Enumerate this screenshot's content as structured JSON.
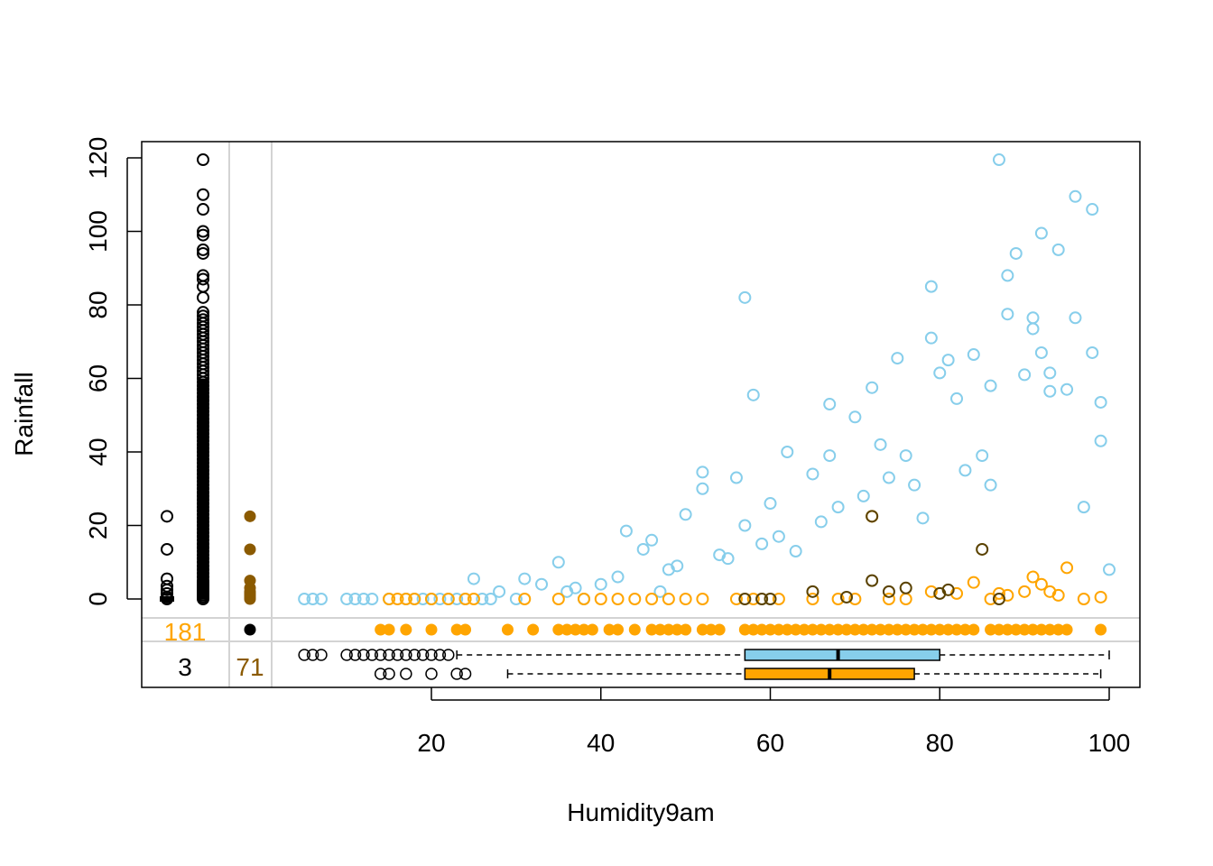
{
  "chart_data": {
    "type": "scatter",
    "title": "",
    "xlabel": "Humidity9am",
    "ylabel": "Rainfall",
    "xlim": [
      4,
      100
    ],
    "ylim": [
      0,
      120
    ],
    "x_ticks": [
      20,
      40,
      60,
      80,
      100
    ],
    "y_ticks": [
      0,
      20,
      40,
      60,
      80,
      100,
      120
    ],
    "grid": false,
    "legend": "none",
    "colors": {
      "complete": "#87CEEB",
      "x_missing": "#FFA500",
      "y_missing": "#8B5A00",
      "both_missing": "#000000",
      "frame": "#000000",
      "panel_lines": "#D3D3D3"
    },
    "missing_counts": {
      "x_missing": "181",
      "y_missing": "71",
      "both_missing": "3"
    },
    "series": [
      {
        "role": "complete",
        "x": [
          5,
          6,
          7,
          10,
          11,
          12,
          13,
          15,
          17,
          18,
          19,
          20,
          21,
          22,
          23,
          24,
          25,
          26,
          27,
          28,
          30,
          31,
          33,
          35,
          36,
          37,
          38,
          40,
          42,
          43,
          45,
          46,
          47,
          48,
          49,
          50,
          52,
          52,
          54,
          55,
          56,
          57,
          57,
          58,
          59,
          60,
          61,
          62,
          63,
          65,
          66,
          67,
          67,
          68,
          70,
          71,
          72,
          73,
          74,
          75,
          76,
          77,
          78,
          79,
          79,
          80,
          81,
          82,
          83,
          84,
          85,
          86,
          86,
          87,
          88,
          88,
          89,
          90,
          91,
          91,
          92,
          92,
          93,
          93,
          94,
          95,
          96,
          96,
          97,
          98,
          98,
          99,
          99,
          100
        ],
        "y": [
          0,
          0,
          0,
          0,
          0,
          0,
          0,
          0,
          0,
          0,
          0,
          0,
          0,
          0,
          0,
          0,
          5.5,
          0,
          0,
          2,
          0,
          5.5,
          4,
          10,
          2,
          3,
          0,
          4,
          6,
          18.5,
          13.5,
          16,
          2,
          8,
          9,
          23,
          34.5,
          30,
          12,
          11,
          33,
          82,
          20,
          55.5,
          15,
          26,
          17,
          40,
          13,
          34,
          21,
          53,
          39,
          25,
          49.5,
          28,
          57.5,
          42,
          33,
          65.5,
          39,
          31,
          22,
          85,
          71,
          61.5,
          65,
          54.5,
          35,
          66.5,
          39,
          58,
          31,
          119.5,
          88,
          77.5,
          94,
          61,
          73.5,
          76.5,
          99.5,
          67,
          61.5,
          56.5,
          95,
          57,
          109.5,
          76.5,
          25,
          106,
          67,
          43,
          53.5,
          8
        ]
      },
      {
        "role": "x_missing",
        "x": [
          15,
          16,
          17,
          18,
          20,
          22,
          24,
          25,
          31,
          35,
          38,
          40,
          42,
          44,
          46,
          48,
          50,
          52,
          56,
          58,
          61,
          65,
          68,
          70,
          72,
          74,
          76,
          79,
          82,
          84,
          86,
          87,
          88,
          90,
          91,
          92,
          93,
          94,
          95,
          97,
          99
        ],
        "y": [
          0,
          0,
          0,
          0,
          0,
          0,
          0,
          0,
          0,
          0,
          0,
          0,
          0,
          0,
          0,
          0,
          0,
          0,
          0,
          0,
          0,
          0,
          0,
          0,
          22.5,
          0,
          0,
          2,
          1.5,
          4.5,
          0,
          1.5,
          1,
          2,
          6,
          4,
          2,
          1,
          8.5,
          0,
          0.5
        ]
      },
      {
        "role": "y_missing",
        "x": [
          14,
          15,
          17,
          20,
          23,
          24,
          29,
          32,
          35,
          36,
          37,
          38,
          39,
          41,
          42,
          44,
          46,
          47,
          48,
          49,
          50,
          52,
          53,
          54,
          57,
          58,
          59,
          60,
          61,
          62,
          63,
          64,
          65,
          66,
          67,
          68,
          69,
          70,
          71,
          72,
          73,
          74,
          75,
          76,
          77,
          78,
          79,
          80,
          81,
          82,
          83,
          84,
          86,
          87,
          88,
          89,
          90,
          91,
          92,
          93,
          94,
          95,
          99
        ]
      },
      {
        "role": "x_missing_y_missing_boxplots",
        "boxplots": [
          {
            "group": "complete",
            "whisker_low": 23,
            "q1": 57,
            "median": 68,
            "q3": 80,
            "whisker_high": 100,
            "outliers": [
              5,
              6,
              7,
              10,
              11,
              12,
              13,
              14,
              15,
              16,
              17,
              18,
              19,
              20,
              21,
              22
            ]
          },
          {
            "group": "y_missing",
            "whisker_low": 29,
            "q1": 57,
            "median": 67,
            "q3": 77,
            "whisker_high": 99,
            "outliers": [
              14,
              15,
              17,
              20,
              23,
              24
            ]
          }
        ]
      },
      {
        "role": "complete_x_missing_rainfall",
        "y": [
          0,
          0.5,
          1,
          1.5,
          2,
          2.5,
          3,
          3.5,
          4,
          4.5,
          5,
          6,
          7,
          8,
          9,
          10,
          11,
          12,
          13,
          14,
          15,
          16,
          17,
          18,
          19,
          20,
          21,
          22,
          23,
          24,
          25,
          26,
          27,
          28,
          29,
          30,
          31,
          32,
          33,
          34,
          35,
          36,
          37,
          38,
          39,
          40,
          41,
          42,
          43,
          44,
          45,
          46,
          47,
          48,
          49,
          50,
          51,
          52,
          53,
          54,
          55,
          56,
          57,
          58,
          59,
          60,
          61,
          62,
          63,
          64,
          65,
          66,
          67,
          68,
          69,
          70,
          71,
          72,
          73,
          74,
          75,
          76,
          77,
          78,
          82,
          85,
          87,
          88,
          94,
          95,
          99,
          100,
          106,
          110,
          119.5
        ]
      },
      {
        "role": "both_missing_rainfall",
        "y": [
          0,
          0.5,
          1.5,
          2.5,
          3.5,
          5.5,
          13.5,
          22.5
        ]
      },
      {
        "role": "y_missing_dots_at_x_missing_margin",
        "y": [
          0,
          0.5,
          1,
          1.5,
          2,
          3,
          5,
          13.5,
          22.5
        ]
      }
    ]
  }
}
